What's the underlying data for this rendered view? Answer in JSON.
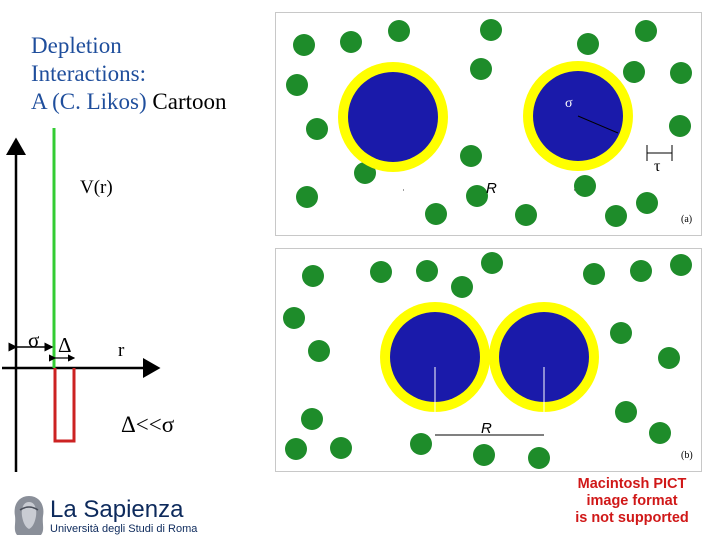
{
  "title": {
    "line1": "Depletion",
    "line2": "Interactions:",
    "line3_a": "A (C. Likos) ",
    "line3_b": "Cartoon"
  },
  "potential_plot": {
    "ylabel": "V(r)",
    "xlabel": "r",
    "sigma_label": "σ",
    "delta_label": "Δ",
    "condition": "Δ<<σ",
    "colors": {
      "repulsive_wall": "#33cc33",
      "attractive_well": "#cc2222",
      "axes": "#000000"
    }
  },
  "panel_a": {
    "label": "(a)",
    "sigma": "σ",
    "tau": "τ",
    "R": "R"
  },
  "panel_b": {
    "label": "(b)",
    "R": "R"
  },
  "colors": {
    "colloid": "#1a1aaa",
    "depletion_layer": "#ffff00",
    "polymer": "#1e8c2a"
  },
  "pict_notice": {
    "line1": "Macintosh PICT",
    "line2": "image format",
    "line3": "is not supported"
  },
  "logo": {
    "name": "La Sapienza",
    "subtitle": "Università degli Studi di Roma",
    "icon": "minerva-head-icon"
  }
}
